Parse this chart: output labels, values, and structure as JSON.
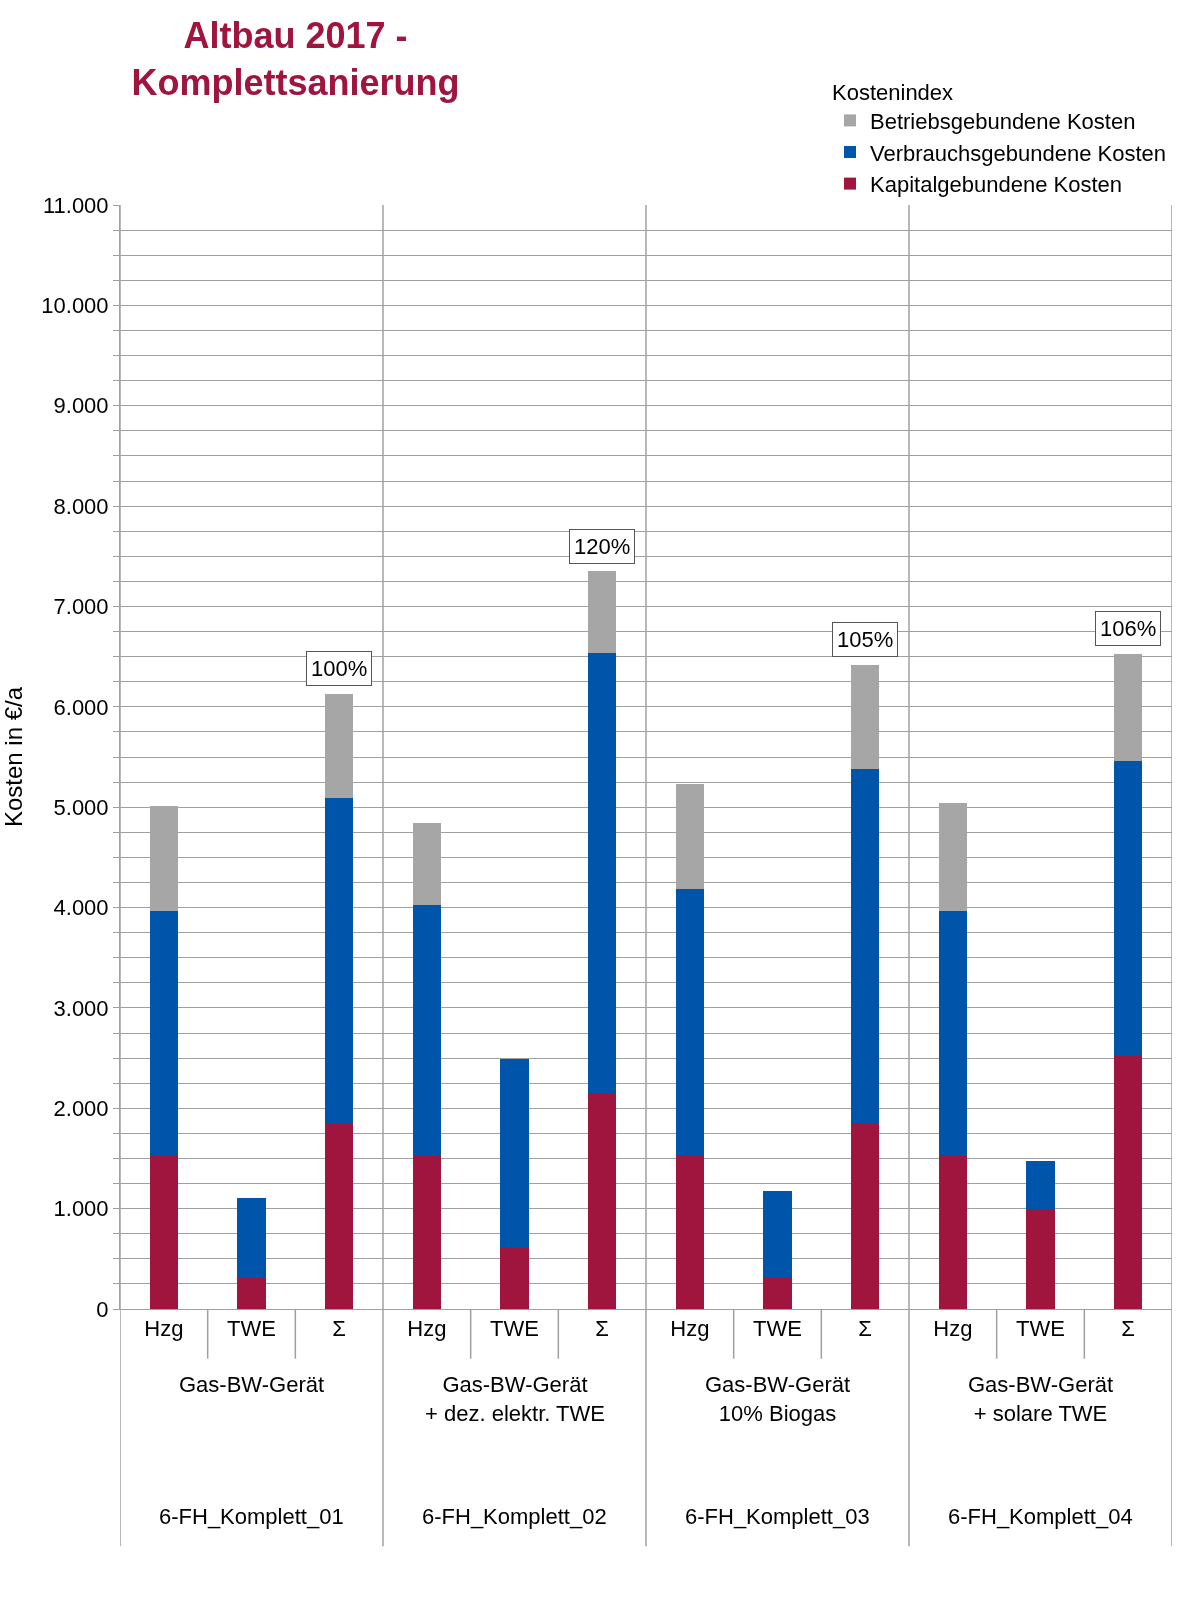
{
  "chart_data": {
    "type": "bar",
    "stacked": true,
    "title": "Altbau 2017 -\nKomplettsanierung",
    "ylabel": "Kosten in €/a",
    "legend_title": "Kostenindex",
    "legend": "top right",
    "grid": "y",
    "categories": [
      "Hzg",
      "TWE",
      "Σ",
      "Hzg",
      "TWE",
      "Σ",
      "Hzg",
      "TWE",
      "Σ",
      "Hzg",
      "TWE",
      "Σ"
    ],
    "series": [
      {
        "name": "Kapitalgebundene Kosten",
        "color": "#a0153e",
        "values": [
          1520,
          310,
          1850,
          1520,
          610,
          2150,
          1520,
          310,
          1850,
          1520,
          1000,
          2530
        ]
      },
      {
        "name": "Verbrauchsgebundene Kosten",
        "color": "#0055aa",
        "values": [
          2450,
          800,
          3240,
          2510,
          1880,
          4390,
          2660,
          870,
          3530,
          2450,
          470,
          2930
        ]
      },
      {
        "name": "Betriebsgebundene Kosten",
        "color": "#a6a6a6",
        "values": [
          1040,
          null,
          1040,
          810,
          null,
          810,
          1050,
          null,
          1040,
          1070,
          null,
          1070
        ]
      }
    ],
    "ylim": [
      0,
      11000
    ],
    "yticks": [
      {
        "value": 0,
        "label": "0"
      },
      {
        "value": 250,
        "label": null
      },
      {
        "value": 500,
        "label": null
      },
      {
        "value": 750,
        "label": null
      },
      {
        "value": 1000,
        "label": "1.000"
      },
      {
        "value": 1250,
        "label": null
      },
      {
        "value": 1500,
        "label": null
      },
      {
        "value": 1750,
        "label": null
      },
      {
        "value": 2000,
        "label": "2.000"
      },
      {
        "value": 2250,
        "label": null
      },
      {
        "value": 2500,
        "label": null
      },
      {
        "value": 2750,
        "label": null
      },
      {
        "value": 3000,
        "label": "3.000"
      },
      {
        "value": 3250,
        "label": null
      },
      {
        "value": 3500,
        "label": null
      },
      {
        "value": 3750,
        "label": null
      },
      {
        "value": 4000,
        "label": "4.000"
      },
      {
        "value": 4250,
        "label": null
      },
      {
        "value": 4500,
        "label": null
      },
      {
        "value": 4750,
        "label": null
      },
      {
        "value": 5000,
        "label": "5.000"
      },
      {
        "value": 5250,
        "label": null
      },
      {
        "value": 5500,
        "label": null
      },
      {
        "value": 5750,
        "label": null
      },
      {
        "value": 6000,
        "label": "6.000"
      },
      {
        "value": 6250,
        "label": null
      },
      {
        "value": 6500,
        "label": null
      },
      {
        "value": 6750,
        "label": null
      },
      {
        "value": 7000,
        "label": "7.000"
      },
      {
        "value": 7250,
        "label": null
      },
      {
        "value": 7500,
        "label": null
      },
      {
        "value": 7750,
        "label": null
      },
      {
        "value": 8000,
        "label": "8.000"
      },
      {
        "value": 8250,
        "label": null
      },
      {
        "value": 8500,
        "label": null
      },
      {
        "value": 8750,
        "label": null
      },
      {
        "value": 9000,
        "label": "9.000"
      },
      {
        "value": 9250,
        "label": null
      },
      {
        "value": 9500,
        "label": null
      },
      {
        "value": 9750,
        "label": null
      },
      {
        "value": 10000,
        "label": "10.000"
      },
      {
        "value": 10250,
        "label": null
      },
      {
        "value": 10500,
        "label": null
      },
      {
        "value": 10750,
        "label": null
      },
      {
        "value": 11000,
        "label": "11.000"
      }
    ],
    "annotations": [
      {
        "text": "100%",
        "y": 6128
      },
      {
        "text": "120%",
        "y": 7344
      },
      {
        "text": "105%",
        "y": 6420
      },
      {
        "text": "106%",
        "y": 6527
      },
      "Gas-BW-Gerät",
      "Gas-BW-Gerät\n+ dez. elektr. TWE",
      "Gas-BW-Gerät\n10% Biogas",
      "Gas-BW-Gerät\n+ solare TWE",
      "6-FH_Komplett_01",
      "6-FH_Komplett_02",
      "6-FH_Komplett_03",
      "6-FH_Komplett_04"
    ]
  }
}
